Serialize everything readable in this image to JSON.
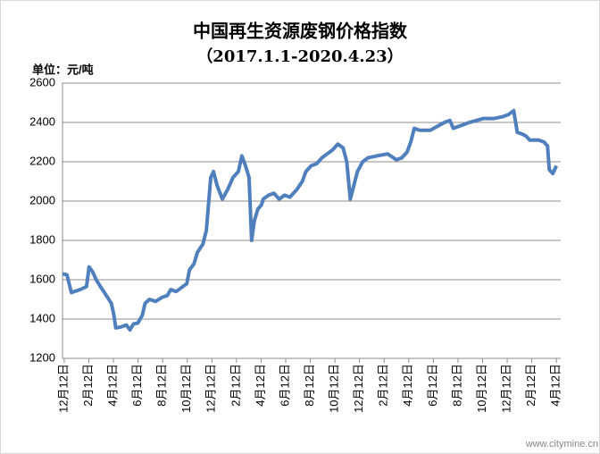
{
  "chart_data": {
    "type": "line",
    "title": "中国再生资源废钢价格指数",
    "subtitle": "（2017.1.1-2020.4.23）",
    "y_unit": "单位：元/吨",
    "watermark": "www.citymine.cn",
    "xlim": [
      -0.14,
      40.35
    ],
    "xticks": [
      {
        "value": 0,
        "label": "12月12日"
      },
      {
        "value": 2,
        "label": "2月12日"
      },
      {
        "value": 4,
        "label": "4月12日"
      },
      {
        "value": 6,
        "label": "6月12日"
      },
      {
        "value": 8,
        "label": "8月12日"
      },
      {
        "value": 10,
        "label": "10月12日"
      },
      {
        "value": 12,
        "label": "12月12日"
      },
      {
        "value": 14,
        "label": "2月12日"
      },
      {
        "value": 16,
        "label": "4月12日"
      },
      {
        "value": 18,
        "label": "6月12日"
      },
      {
        "value": 20,
        "label": "8月12日"
      },
      {
        "value": 22,
        "label": "10月12日"
      },
      {
        "value": 24,
        "label": "12月12日"
      },
      {
        "value": 26,
        "label": "2月12日"
      },
      {
        "value": 28,
        "label": "4月12日"
      },
      {
        "value": 30,
        "label": "6月12日"
      },
      {
        "value": 32,
        "label": "8月12日"
      },
      {
        "value": 34,
        "label": "10月12日"
      },
      {
        "value": 36,
        "label": "12月12日"
      },
      {
        "value": 38,
        "label": "2月12日"
      },
      {
        "value": 40,
        "label": "4月12日"
      }
    ],
    "ylim": [
      1200,
      2600
    ],
    "yticks": [
      1200,
      1400,
      1600,
      1800,
      2000,
      2200,
      2400,
      2600
    ],
    "grid": true,
    "color": "#4f7fbd",
    "x": [
      -0.14,
      0.22,
      0.58,
      1.3,
      1.81,
      2.02,
      2.31,
      2.6,
      2.89,
      3.32,
      3.83,
      4.04,
      4.19,
      4.62,
      5.05,
      5.34,
      5.63,
      5.99,
      6.35,
      6.57,
      6.93,
      7.44,
      7.94,
      8.38,
      8.66,
      9.1,
      9.53,
      9.96,
      10.18,
      10.54,
      10.83,
      11.26,
      11.55,
      11.91,
      12.13,
      12.42,
      12.85,
      13.29,
      13.72,
      14.15,
      14.44,
      14.73,
      15.02,
      15.23,
      15.45,
      15.74,
      16.03,
      16.17,
      16.61,
      17.04,
      17.47,
      17.91,
      18.34,
      18.92,
      19.35,
      19.64,
      20.07,
      20.51,
      20.94,
      21.37,
      21.81,
      22.24,
      22.67,
      22.96,
      23.25,
      23.54,
      23.83,
      24.26,
      24.69,
      25.42,
      26.28,
      27.0,
      27.44,
      27.87,
      28.16,
      28.45,
      28.88,
      29.75,
      30.32,
      30.9,
      31.34,
      31.62,
      32.06,
      32.49,
      32.92,
      33.5,
      34.08,
      34.95,
      35.67,
      36.1,
      36.53,
      36.82,
      37.26,
      37.55,
      37.83,
      38.56,
      39.0,
      39.28,
      39.42,
      39.71,
      40.0
    ],
    "values": [
      1630,
      1625,
      1535,
      1550,
      1565,
      1665,
      1640,
      1600,
      1570,
      1530,
      1480,
      1420,
      1355,
      1360,
      1370,
      1345,
      1375,
      1380,
      1420,
      1480,
      1500,
      1490,
      1510,
      1520,
      1550,
      1540,
      1560,
      1580,
      1650,
      1680,
      1740,
      1780,
      1850,
      2120,
      2150,
      2080,
      2010,
      2060,
      2120,
      2150,
      2230,
      2180,
      2120,
      1800,
      1900,
      1960,
      1980,
      2010,
      2030,
      2040,
      2010,
      2030,
      2020,
      2060,
      2100,
      2150,
      2180,
      2190,
      2220,
      2240,
      2260,
      2290,
      2270,
      2200,
      2010,
      2080,
      2150,
      2200,
      2220,
      2230,
      2240,
      2210,
      2220,
      2250,
      2300,
      2370,
      2360,
      2360,
      2380,
      2400,
      2410,
      2370,
      2380,
      2390,
      2400,
      2410,
      2420,
      2420,
      2430,
      2440,
      2460,
      2350,
      2340,
      2330,
      2310,
      2310,
      2300,
      2280,
      2160,
      2140,
      2180
    ]
  }
}
